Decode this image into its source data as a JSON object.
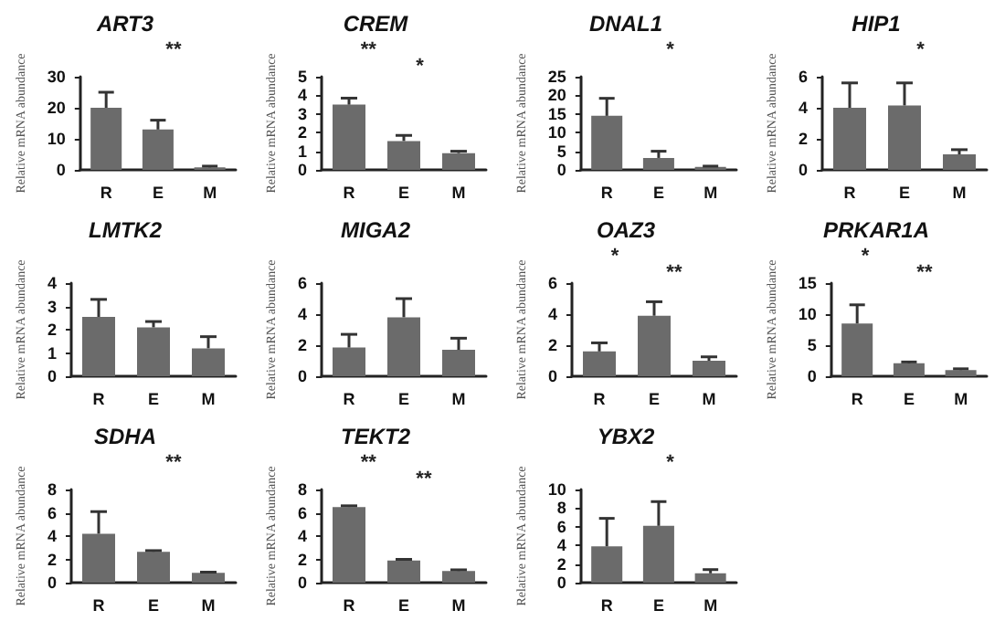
{
  "chart_data": [
    {
      "type": "bar",
      "title": "ART3",
      "ylabel": "Relative mRNA abundance",
      "categories": [
        "R",
        "E",
        "M"
      ],
      "values": [
        20,
        13,
        0.8
      ],
      "errors": [
        [
          20,
          25
        ],
        [
          13,
          16
        ],
        [
          0.8,
          1.2
        ]
      ],
      "color": "#6b6b6b",
      "ylim": [
        0,
        30
      ],
      "yticks": [
        0,
        10,
        20,
        30
      ],
      "annotations": [
        "**"
      ]
    },
    {
      "type": "bar",
      "title": "CREM",
      "ylabel": "Relative mRNA abundance",
      "categories": [
        "R",
        "E",
        "M"
      ],
      "values": [
        3.5,
        1.55,
        0.9
      ],
      "errors": [
        [
          3.5,
          3.85
        ],
        [
          1.55,
          1.85
        ],
        [
          0.9,
          1.0
        ]
      ],
      "color": "#6b6b6b",
      "ylim": [
        0,
        5
      ],
      "yticks": [
        0,
        1,
        2,
        3,
        4,
        5
      ],
      "annotations": [
        "**",
        "*"
      ]
    },
    {
      "type": "bar",
      "title": "DNAL1",
      "ylabel": "Relative mRNA abundance",
      "categories": [
        "R",
        "E",
        "M"
      ],
      "values": [
        14.5,
        3.2,
        0.8
      ],
      "errors": [
        [
          14.5,
          19.2
        ],
        [
          3.2,
          5
        ],
        [
          0.8,
          1
        ]
      ],
      "color": "#6b6b6b",
      "ylim": [
        0,
        25
      ],
      "yticks": [
        0,
        5,
        10,
        15,
        20,
        25
      ],
      "annotations": [
        "*"
      ]
    },
    {
      "type": "bar",
      "title": "HIP1",
      "ylabel": "Relative mRNA abundance",
      "categories": [
        "R",
        "E",
        "M"
      ],
      "values": [
        4,
        4.15,
        1
      ],
      "errors": [
        [
          4,
          5.6
        ],
        [
          4.15,
          5.6
        ],
        [
          1,
          1.3
        ]
      ],
      "color": "#6b6b6b",
      "ylim": [
        0,
        6
      ],
      "yticks": [
        0,
        2,
        4,
        6
      ],
      "annotations": [
        "*"
      ]
    },
    {
      "type": "bar",
      "title": "LMTK2",
      "ylabel": "Relative mRNA abundance",
      "categories": [
        "R",
        "E",
        "M"
      ],
      "values": [
        2.55,
        2.1,
        1.2
      ],
      "errors": [
        [
          2.55,
          3.3
        ],
        [
          2.1,
          2.35
        ],
        [
          1.2,
          1.7
        ]
      ],
      "color": "#6b6b6b",
      "ylim": [
        0,
        4
      ],
      "yticks": [
        0,
        1,
        2,
        3,
        4
      ]
    },
    {
      "type": "bar",
      "title": "MIGA2",
      "ylabel": "Relative mRNA abundance",
      "categories": [
        "R",
        "E",
        "M"
      ],
      "values": [
        1.85,
        3.8,
        1.7
      ],
      "errors": [
        [
          1.85,
          2.7
        ],
        [
          3.8,
          5
        ],
        [
          1.7,
          2.45
        ]
      ],
      "color": "#6b6b6b",
      "ylim": [
        0,
        6
      ],
      "yticks": [
        0,
        2,
        4,
        6
      ]
    },
    {
      "type": "bar",
      "title": "OAZ3",
      "ylabel": "Relative mRNA abundance",
      "categories": [
        "R",
        "E",
        "M"
      ],
      "values": [
        1.6,
        3.9,
        1
      ],
      "errors": [
        [
          1.6,
          2.15
        ],
        [
          3.9,
          4.8
        ],
        [
          1,
          1.25
        ]
      ],
      "color": "#6b6b6b",
      "ylim": [
        0,
        6
      ],
      "yticks": [
        0,
        2,
        4,
        6
      ],
      "annotations": [
        "*",
        "**"
      ]
    },
    {
      "type": "bar",
      "title": "PRKAR1A",
      "ylabel": "Relative mRNA abundance",
      "categories": [
        "R",
        "E",
        "M"
      ],
      "values": [
        8.5,
        2.1,
        1
      ],
      "errors": [
        [
          8.5,
          11.5
        ],
        [
          2.1,
          2.3
        ],
        [
          1,
          1.2
        ]
      ],
      "color": "#6b6b6b",
      "ylim": [
        0,
        15
      ],
      "yticks": [
        0,
        5,
        10,
        15
      ],
      "annotations": [
        "*",
        "**"
      ]
    },
    {
      "type": "bar",
      "title": "SDHA",
      "ylabel": "Relative mRNA abundance",
      "categories": [
        "R",
        "E",
        "M"
      ],
      "values": [
        4.2,
        2.65,
        0.85
      ],
      "errors": [
        [
          4.2,
          6.1
        ],
        [
          2.65,
          2.75
        ],
        [
          0.85,
          0.9
        ]
      ],
      "color": "#6b6b6b",
      "ylim": [
        0,
        8
      ],
      "yticks": [
        0,
        2,
        4,
        6,
        8
      ],
      "annotations": [
        "**"
      ]
    },
    {
      "type": "bar",
      "title": "TEKT2",
      "ylabel": "Relative mRNA abundance",
      "categories": [
        "R",
        "E",
        "M"
      ],
      "values": [
        6.5,
        1.9,
        1
      ],
      "errors": [
        [
          6.5,
          6.6
        ],
        [
          1.9,
          2
        ],
        [
          1,
          1.1
        ]
      ],
      "color": "#6b6b6b",
      "ylim": [
        0,
        8
      ],
      "yticks": [
        0,
        2,
        4,
        6,
        8
      ],
      "annotations": [
        "**",
        "**"
      ]
    },
    {
      "type": "bar",
      "title": "YBX2",
      "ylabel": "Relative mRNA abundance",
      "categories": [
        "R",
        "E",
        "M"
      ],
      "values": [
        3.9,
        6.1,
        1
      ],
      "errors": [
        [
          3.9,
          6.9
        ],
        [
          6.1,
          8.7
        ],
        [
          1,
          1.4
        ]
      ],
      "color": "#6b6b6b",
      "ylim": [
        0,
        10
      ],
      "yticks": [
        0,
        2,
        4,
        6,
        8,
        10
      ],
      "annotations": [
        "*"
      ]
    }
  ]
}
